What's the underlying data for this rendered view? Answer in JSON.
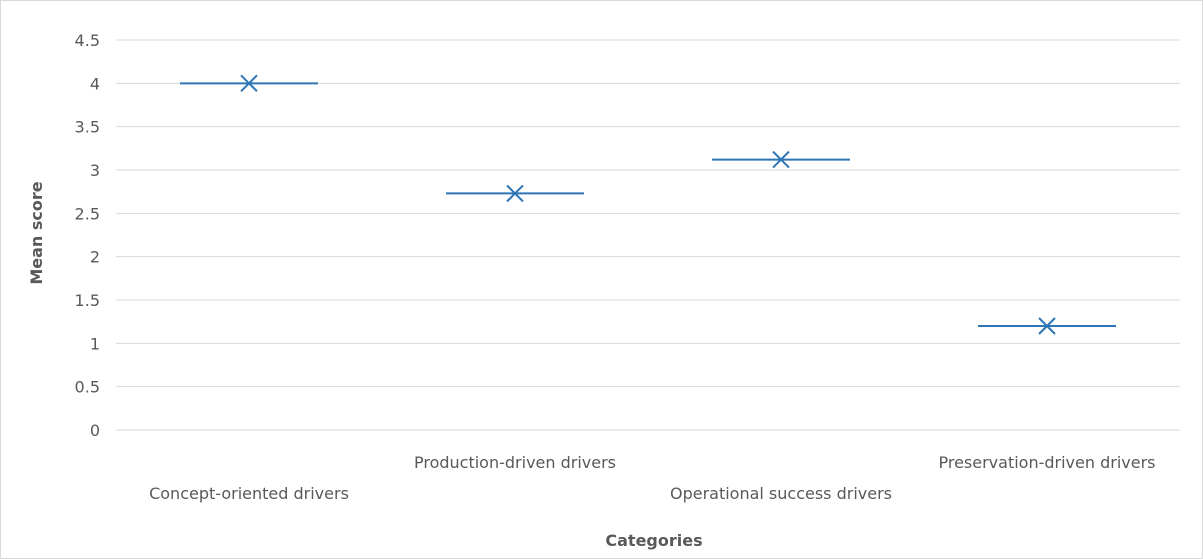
{
  "chart_data": {
    "type": "scatter",
    "title": "",
    "xlabel": "Categories",
    "ylabel": "Mean score",
    "categories": [
      "Concept-oriented drivers",
      "Production-driven drivers",
      "Operational success drivers",
      "Preservation-driven drivers"
    ],
    "values": [
      4.0,
      2.73,
      3.12,
      1.2
    ],
    "yticks": [
      "0",
      "0.5",
      "1",
      "1.5",
      "2",
      "2.5",
      "3",
      "3.5",
      "4",
      "4.5"
    ],
    "ylim": [
      0,
      4.5
    ],
    "grid": true,
    "legend": "none",
    "colors": {
      "series": "#2e75b6",
      "grid": "#d9d9d9",
      "text": "#595959"
    },
    "marker": "x-with-horizontal-bar"
  }
}
